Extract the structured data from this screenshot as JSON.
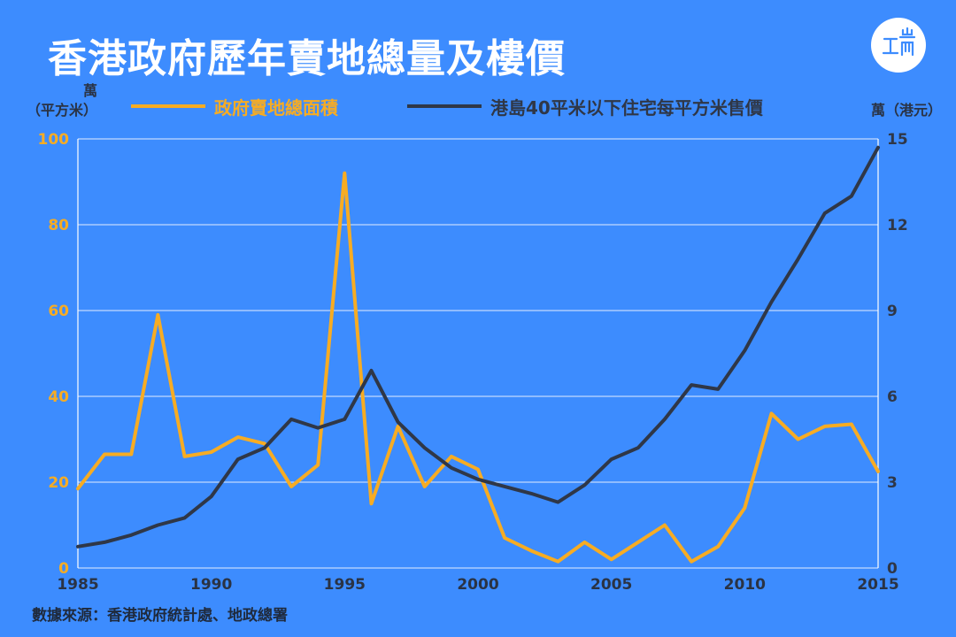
{
  "header": {
    "title": "香港政府歷年賣地總量及樓價",
    "logo_icon": "initium-logo-icon"
  },
  "colors": {
    "background": "#3d8cfe",
    "land_series": "#f7ac23",
    "price_series": "#2f3747",
    "grid": "#ffffff"
  },
  "chart_data": {
    "type": "line",
    "title": "香港政府歷年賣地總量及樓價",
    "y_left_unit": [
      "萬",
      "（平方米）"
    ],
    "y_right_unit": "萬（港元）",
    "x": [
      1985,
      1986,
      1987,
      1988,
      1989,
      1990,
      1991,
      1992,
      1993,
      1994,
      1995,
      1996,
      1997,
      1998,
      1999,
      2000,
      2001,
      2002,
      2003,
      2004,
      2005,
      2006,
      2007,
      2008,
      2009,
      2010,
      2011,
      2012,
      2013,
      2014,
      2015
    ],
    "xlim": [
      1985,
      2015
    ],
    "x_ticks": [
      "1985",
      "1990",
      "1995",
      "2000",
      "2005",
      "2010",
      "2015"
    ],
    "ylim_left": [
      0,
      100
    ],
    "y_ticks_left": [
      "0",
      "20",
      "40",
      "60",
      "80",
      "100"
    ],
    "ylim_right": [
      0,
      15
    ],
    "y_ticks_right": [
      "0",
      "3",
      "6",
      "9",
      "12",
      "15"
    ],
    "grid": true,
    "legend_position": "top",
    "series": [
      {
        "name": "政府賣地總面積",
        "axis": "left",
        "values": [
          18.5,
          26.5,
          26.5,
          59,
          26,
          27,
          30.5,
          29,
          19,
          24,
          92,
          15,
          33,
          19,
          26,
          23,
          7,
          4,
          1.5,
          6,
          2,
          6,
          10,
          1.5,
          5,
          14,
          36,
          30,
          33,
          33.5,
          22.5
        ]
      },
      {
        "name": "港島40平米以下住宅每平方米售價",
        "axis": "right",
        "values": [
          0.75,
          0.9,
          1.15,
          1.5,
          1.75,
          2.5,
          3.8,
          4.2,
          5.2,
          4.9,
          5.2,
          6.9,
          5.1,
          4.2,
          3.5,
          3.1,
          2.85,
          2.6,
          2.3,
          2.9,
          3.8,
          4.2,
          5.2,
          6.4,
          6.25,
          7.6,
          9.3,
          10.8,
          12.4,
          13,
          14.7
        ]
      }
    ]
  },
  "footer": {
    "source": "數據來源：香港政府統計處、地政總署"
  }
}
